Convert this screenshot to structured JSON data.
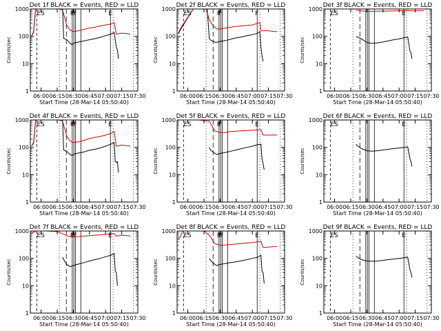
{
  "chart_data": [
    {
      "type": "line",
      "title": "Det 1f BLACK = Events, RED = LLD",
      "xlabel": "Start Time (28-Mar-14 05:50:40)",
      "ylabel": "Counts/sec",
      "yscale": "log",
      "ylim": [
        1,
        1000
      ],
      "xlim": [
        "05:50",
        "07:30"
      ],
      "xticks": [
        "06:00",
        "06:15",
        "06:30",
        "06:45",
        "07:00",
        "07:15",
        "07:30"
      ],
      "yticks": [
        "1",
        "10",
        "100",
        "1000"
      ],
      "markers": [
        "E",
        "S",
        "F",
        "F",
        "F",
        "E"
      ],
      "series": [
        {
          "name": "Events",
          "color": "#000000",
          "x": [
            "05:51",
            "05:53",
            "05:55",
            "06:05",
            "06:13",
            "06:20",
            "06:21",
            "06:24",
            "06:27",
            "06:29",
            "06:31",
            "06:35",
            "06:40",
            "06:45",
            "06:50",
            "06:55",
            "07:00",
            "07:05",
            "07:08",
            "07:10",
            "07:11",
            "07:12"
          ],
          "y": [
            100,
            140,
            1000,
            1000,
            1000,
            1000,
            85,
            75,
            55,
            50,
            58,
            62,
            68,
            75,
            82,
            92,
            105,
            120,
            140,
            40,
            32,
            15
          ]
        },
        {
          "name": "LLD",
          "color": "#cc0000",
          "x": [
            "05:51",
            "05:53",
            "05:55",
            "06:05",
            "06:13",
            "06:17",
            "06:20",
            "06:24",
            "06:27",
            "06:30",
            "06:35",
            "06:40",
            "06:45",
            "06:50",
            "06:55",
            "07:00",
            "07:05",
            "07:08",
            "07:10",
            "07:15",
            "07:20",
            "07:23"
          ],
          "y": [
            100,
            150,
            1000,
            1000,
            1000,
            1000,
            900,
            250,
            170,
            150,
            160,
            180,
            200,
            215,
            240,
            260,
            280,
            320,
            120,
            130,
            125,
            120
          ]
        }
      ]
    },
    {
      "type": "line",
      "title": "Det 2f BLACK = Events, RED = LLD",
      "xlabel": "Start Time (28-Mar-14 05:50:40)",
      "ylabel": "Counts/sec",
      "yscale": "log",
      "ylim": [
        1,
        1000
      ],
      "xlim": [
        "05:50",
        "07:30"
      ],
      "xticks": [
        "06:00",
        "06:15",
        "06:30",
        "06:45",
        "07:00",
        "07:15",
        "07:30"
      ],
      "yticks": [
        "1",
        "10",
        "100",
        "1000"
      ],
      "markers": [
        "E",
        "S",
        "F",
        "F",
        "F"
      ],
      "series": [
        {
          "name": "Events",
          "color": "#000000",
          "x": [
            "05:51",
            "05:54",
            "06:05",
            "06:13",
            "06:18",
            "06:20",
            "06:22",
            "06:26",
            "06:30",
            "06:35",
            "06:40",
            "06:45",
            "06:50",
            "06:55",
            "07:00",
            "07:05",
            "07:07",
            "07:08",
            "07:09",
            "07:10"
          ],
          "y": [
            120,
            200,
            1000,
            1000,
            1000,
            80,
            70,
            60,
            65,
            70,
            78,
            88,
            95,
            105,
            115,
            130,
            150,
            40,
            20,
            12
          ]
        },
        {
          "name": "LLD",
          "color": "#cc0000",
          "x": [
            "05:51",
            "05:54",
            "06:05",
            "06:13",
            "06:17",
            "06:20",
            "06:24",
            "06:28",
            "06:32",
            "06:38",
            "06:45",
            "06:50",
            "06:55",
            "07:00",
            "07:05",
            "07:07",
            "07:08",
            "07:15",
            "07:20",
            "07:23"
          ],
          "y": [
            130,
            220,
            1000,
            1000,
            1000,
            400,
            230,
            180,
            190,
            210,
            230,
            240,
            250,
            260,
            300,
            320,
            160,
            160,
            150,
            150
          ]
        }
      ]
    },
    {
      "type": "line",
      "title": "Det 3f BLACK = Events, RED = LLD",
      "xlabel": "Start Time (28-Mar-14 05:50:40)",
      "ylabel": "Counts/sec",
      "yscale": "log",
      "ylim": [
        1,
        1000
      ],
      "xlim": [
        "05:50",
        "07:30"
      ],
      "xticks": [
        "06:00",
        "06:15",
        "06:30",
        "06:45",
        "07:00",
        "07:15",
        "07:30"
      ],
      "yticks": [
        "1",
        "10",
        "100",
        "1000"
      ],
      "markers": [
        "E",
        "S",
        "E"
      ],
      "series": [
        {
          "name": "Events",
          "color": "#000000",
          "x": [
            "06:20",
            "06:21",
            "06:25",
            "06:30",
            "06:35",
            "06:40",
            "06:45",
            "06:50",
            "06:55",
            "07:00",
            "07:05",
            "07:08",
            "07:10",
            "07:11",
            "07:12"
          ],
          "y": [
            100,
            95,
            80,
            60,
            55,
            58,
            62,
            68,
            75,
            80,
            90,
            95,
            30,
            25,
            15
          ]
        },
        {
          "name": "LLD",
          "color": "#cc0000",
          "x": [
            "06:20",
            "06:25",
            "06:30",
            "06:40",
            "06:50",
            "07:00",
            "07:08",
            "07:10",
            "07:20",
            "07:23"
          ],
          "y": [
            900,
            850,
            820,
            830,
            840,
            860,
            880,
            860,
            860,
            860
          ]
        }
      ]
    },
    {
      "type": "line",
      "title": "Det 4f BLACK = Events, RED = LLD",
      "xlabel": "Start Time (28-Mar-14 05:50:40)",
      "ylabel": "Counts/sec",
      "yscale": "log",
      "ylim": [
        1,
        1000
      ],
      "xlim": [
        "05:50",
        "07:30"
      ],
      "xticks": [
        "06:00",
        "06:15",
        "06:30",
        "06:45",
        "07:00",
        "07:15",
        "07:30"
      ],
      "yticks": [
        "1",
        "10",
        "100",
        "1000"
      ],
      "markers": [
        "E",
        "S",
        "F",
        "F",
        "F",
        "E"
      ],
      "series": [
        {
          "name": "Events",
          "color": "#000000",
          "x": [
            "05:51",
            "05:53",
            "05:55",
            "06:05",
            "06:13",
            "06:20",
            "06:21",
            "06:24",
            "06:27",
            "06:29",
            "06:31",
            "06:35",
            "06:40",
            "06:45",
            "06:50",
            "06:55",
            "07:00",
            "07:05",
            "07:08",
            "07:09",
            "07:10",
            "07:11",
            "07:12"
          ],
          "y": [
            110,
            140,
            1000,
            1000,
            1000,
            1000,
            80,
            70,
            55,
            50,
            58,
            62,
            68,
            78,
            85,
            95,
            110,
            130,
            150,
            30,
            28,
            30,
            12
          ]
        },
        {
          "name": "LLD",
          "color": "#cc0000",
          "x": [
            "05:51",
            "05:53",
            "05:55",
            "06:05",
            "06:13",
            "06:17",
            "06:20",
            "06:24",
            "06:27",
            "06:30",
            "06:35",
            "06:40",
            "06:45",
            "06:50",
            "06:55",
            "07:00",
            "07:05",
            "07:08",
            "07:10",
            "07:15",
            "07:20",
            "07:23"
          ],
          "y": [
            110,
            150,
            1000,
            1000,
            1000,
            1000,
            900,
            250,
            170,
            150,
            160,
            180,
            210,
            230,
            250,
            280,
            320,
            380,
            110,
            120,
            115,
            110
          ]
        }
      ]
    },
    {
      "type": "line",
      "title": "Det 5f BLACK = Events, RED = LLD",
      "xlabel": "Start Time (28-Mar-14 05:50:40)",
      "ylabel": "Counts/sec",
      "yscale": "log",
      "ylim": [
        1,
        1000
      ],
      "xlim": [
        "05:50",
        "07:30"
      ],
      "xticks": [
        "06:00",
        "06:15",
        "06:30",
        "06:45",
        "07:00",
        "07:15",
        "07:30"
      ],
      "yticks": [
        "1",
        "10",
        "100",
        "1000"
      ],
      "markers": [
        "E",
        "S",
        "F",
        "F",
        "E"
      ],
      "series": [
        {
          "name": "Events",
          "color": "#000000",
          "x": [
            "06:20",
            "06:21",
            "06:24",
            "06:27",
            "06:30",
            "06:35",
            "06:40",
            "06:45",
            "06:50",
            "06:55",
            "07:00",
            "07:05",
            "07:08",
            "07:09",
            "07:10",
            "07:11"
          ],
          "y": [
            100,
            80,
            65,
            55,
            60,
            65,
            72,
            80,
            90,
            100,
            110,
            125,
            130,
            40,
            25,
            15
          ]
        },
        {
          "name": "LLD",
          "color": "#cc0000",
          "x": [
            "05:55",
            "05:57",
            "06:00",
            "06:10",
            "06:20",
            "06:25",
            "06:30",
            "06:35",
            "06:40",
            "06:50",
            "07:00",
            "07:05",
            "07:08",
            "07:10",
            "07:15",
            "07:20",
            "07:23"
          ],
          "y": [
            1000,
            1000,
            1000,
            1000,
            900,
            400,
            350,
            350,
            380,
            400,
            420,
            430,
            440,
            280,
            280,
            280,
            280
          ]
        }
      ]
    },
    {
      "type": "line",
      "title": "Det 6f BLACK = Events, RED = LLD",
      "xlabel": "Start Time (28-Mar-14 05:50:40)",
      "ylabel": "Counts/sec",
      "yscale": "log",
      "ylim": [
        1,
        1000
      ],
      "xlim": [
        "05:50",
        "07:30"
      ],
      "xticks": [
        "06:00",
        "06:15",
        "06:30",
        "06:45",
        "07:00",
        "07:15",
        "07:30"
      ],
      "yticks": [
        "1",
        "10",
        "100",
        "1000"
      ],
      "markers": [
        "E",
        "S",
        "E"
      ],
      "series": [
        {
          "name": "Events",
          "color": "#000000",
          "x": [
            "06:20",
            "06:21",
            "06:25",
            "06:30",
            "06:35",
            "06:40",
            "06:45",
            "06:50",
            "06:55",
            "07:00",
            "07:05",
            "07:08",
            "07:10",
            "07:11",
            "07:12"
          ],
          "y": [
            130,
            115,
            90,
            75,
            72,
            75,
            80,
            85,
            90,
            95,
            100,
            105,
            40,
            30,
            20
          ]
        }
      ]
    },
    {
      "type": "line",
      "title": "Det 7f BLACK = Events, RED = LLD",
      "xlabel": "Start Time (28-Mar-14 05:50:40)",
      "ylabel": "Counts/sec",
      "yscale": "log",
      "ylim": [
        1,
        1000
      ],
      "xlim": [
        "05:50",
        "07:30"
      ],
      "xticks": [
        "06:00",
        "06:15",
        "06:30",
        "06:45",
        "07:00",
        "07:15",
        "07:30"
      ],
      "yticks": [
        "1",
        "10",
        "100",
        "1000"
      ],
      "markers": [
        "E",
        "S",
        "F",
        "F",
        "F",
        "E"
      ],
      "series": [
        {
          "name": "Events",
          "color": "#000000",
          "x": [
            "06:20",
            "06:21",
            "06:24",
            "06:27",
            "06:30",
            "06:35",
            "06:40",
            "06:45",
            "06:50",
            "06:55",
            "07:00",
            "07:05",
            "07:08",
            "07:09",
            "07:10",
            "07:11"
          ],
          "y": [
            110,
            90,
            60,
            50,
            55,
            62,
            70,
            80,
            90,
            100,
            115,
            130,
            150,
            35,
            30,
            10
          ]
        },
        {
          "name": "LLD",
          "color": "#cc0000",
          "x": [
            "05:51",
            "05:53",
            "05:55",
            "06:05",
            "06:15",
            "06:20",
            "06:25",
            "06:30",
            "06:40",
            "06:50",
            "07:00",
            "07:08",
            "07:10",
            "07:15",
            "07:20",
            "07:23"
          ],
          "y": [
            800,
            900,
            1000,
            1000,
            950,
            800,
            650,
            600,
            650,
            700,
            750,
            800,
            650,
            700,
            680,
            650
          ]
        }
      ]
    },
    {
      "type": "line",
      "title": "Det 8f BLACK = Events, RED = LLD",
      "xlabel": "Start Time (28-Mar-14 05:50:40)",
      "ylabel": "Counts/sec",
      "yscale": "log",
      "ylim": [
        1,
        1000
      ],
      "xlim": [
        "05:50",
        "07:30"
      ],
      "xticks": [
        "06:00",
        "06:15",
        "06:30",
        "06:45",
        "07:00",
        "07:15",
        "07:30"
      ],
      "yticks": [
        "1",
        "10",
        "100",
        "1000"
      ],
      "markers": [
        "E",
        "S",
        "F",
        "F",
        "F",
        "E"
      ],
      "series": [
        {
          "name": "Events",
          "color": "#000000",
          "x": [
            "06:20",
            "06:21",
            "06:24",
            "06:27",
            "06:30",
            "06:35",
            "06:40",
            "06:45",
            "06:50",
            "06:55",
            "07:00",
            "07:05",
            "07:08",
            "07:09",
            "07:10",
            "07:11"
          ],
          "y": [
            100,
            85,
            65,
            55,
            60,
            65,
            70,
            75,
            82,
            90,
            100,
            110,
            130,
            35,
            30,
            12
          ]
        },
        {
          "name": "LLD",
          "color": "#cc0000",
          "x": [
            "05:51",
            "05:53",
            "05:55",
            "06:05",
            "06:15",
            "06:20",
            "06:25",
            "06:30",
            "06:40",
            "06:50",
            "07:00",
            "07:08",
            "07:10",
            "07:15",
            "07:20",
            "07:23"
          ],
          "y": [
            500,
            600,
            1000,
            1000,
            1000,
            700,
            350,
            300,
            320,
            350,
            380,
            420,
            250,
            260,
            270,
            270
          ]
        }
      ]
    },
    {
      "type": "line",
      "title": "Det 9f BLACK = Events, RED = LLD",
      "xlabel": "Start Time (28-Mar-14 05:50:40)",
      "ylabel": "Counts/sec",
      "yscale": "log",
      "ylim": [
        1,
        1000
      ],
      "xlim": [
        "05:50",
        "07:30"
      ],
      "xticks": [
        "06:00",
        "06:15",
        "06:30",
        "06:45",
        "07:00",
        "07:15",
        "07:30"
      ],
      "yticks": [
        "1",
        "10",
        "100",
        "1000"
      ],
      "markers": [
        "E",
        "S",
        "E"
      ],
      "series": [
        {
          "name": "Events",
          "color": "#000000",
          "x": [
            "06:20",
            "06:21",
            "06:25",
            "06:30",
            "06:35",
            "06:40",
            "06:45",
            "06:50",
            "06:55",
            "07:00",
            "07:05",
            "07:08",
            "07:10",
            "07:11",
            "07:12"
          ],
          "y": [
            120,
            110,
            90,
            80,
            78,
            80,
            85,
            90,
            95,
            100,
            105,
            110,
            40,
            30,
            20
          ]
        }
      ]
    }
  ]
}
